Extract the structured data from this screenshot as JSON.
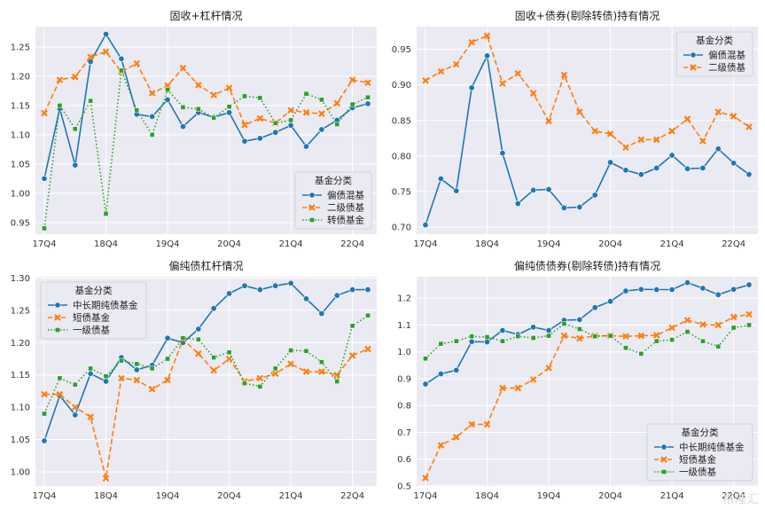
{
  "watermark": "格隆汇",
  "chart_data": [
    {
      "type": "line",
      "title": "固收+杠杆情况",
      "xlabel": "",
      "ylabel": "",
      "x": [
        "17Q4",
        "18Q1",
        "18Q2",
        "18Q3",
        "18Q4",
        "19Q1",
        "19Q2",
        "19Q3",
        "19Q4",
        "20Q1",
        "20Q2",
        "20Q3",
        "20Q4",
        "21Q1",
        "21Q2",
        "21Q3",
        "21Q4",
        "22Q1",
        "22Q2",
        "22Q3",
        "22Q4",
        "23Q1"
      ],
      "xticks": [
        "17Q4",
        "18Q4",
        "19Q4",
        "20Q4",
        "21Q4",
        "22Q4"
      ],
      "ylim": [
        0.93,
        1.285
      ],
      "yticks": [
        0.95,
        1.0,
        1.05,
        1.1,
        1.15,
        1.2,
        1.25
      ],
      "ytick_decimals": 2,
      "grid": true,
      "legend": {
        "title": "基金分类",
        "placement": "lower-right"
      },
      "series": [
        {
          "name": "偏债混基",
          "color": "#1f77b4",
          "style": "solid",
          "marker": "circle",
          "values": [
            1.025,
            1.145,
            1.048,
            1.225,
            1.272,
            1.23,
            1.135,
            1.131,
            1.16,
            1.114,
            1.138,
            1.13,
            1.138,
            1.089,
            1.094,
            1.104,
            1.116,
            1.08,
            1.109,
            1.125,
            1.146,
            1.153
          ]
        },
        {
          "name": "二级债基",
          "color": "#ff7f0e",
          "style": "dashed",
          "marker": "x",
          "values": [
            1.137,
            1.194,
            1.199,
            1.233,
            1.242,
            1.208,
            1.222,
            1.171,
            1.184,
            1.214,
            1.185,
            1.168,
            1.18,
            1.117,
            1.128,
            1.12,
            1.142,
            1.138,
            1.136,
            1.154,
            1.194,
            1.189
          ]
        },
        {
          "name": "转债基金",
          "color": "#2ca02c",
          "style": "dotted",
          "marker": "square",
          "values": [
            0.94,
            1.15,
            1.11,
            1.158,
            0.965,
            1.21,
            1.142,
            1.1,
            1.177,
            1.147,
            1.144,
            1.129,
            1.148,
            1.166,
            1.163,
            1.12,
            1.125,
            1.17,
            1.16,
            1.118,
            1.152,
            1.164
          ]
        }
      ]
    },
    {
      "type": "line",
      "title": "固收+债券(剔除转债)持有情况",
      "xlabel": "",
      "ylabel": "",
      "x": [
        "17Q4",
        "18Q1",
        "18Q2",
        "18Q3",
        "18Q4",
        "19Q1",
        "19Q2",
        "19Q3",
        "19Q4",
        "20Q1",
        "20Q2",
        "20Q3",
        "20Q4",
        "21Q1",
        "21Q2",
        "21Q3",
        "21Q4",
        "22Q1",
        "22Q2",
        "22Q3",
        "22Q4",
        "23Q1"
      ],
      "xticks": [
        "17Q4",
        "18Q4",
        "19Q4",
        "20Q4",
        "21Q4",
        "22Q4"
      ],
      "ylim": [
        0.69,
        0.982
      ],
      "yticks": [
        0.7,
        0.75,
        0.8,
        0.85,
        0.9,
        0.95
      ],
      "ytick_decimals": 2,
      "grid": true,
      "legend": {
        "title": "基金分类",
        "placement": "upper-right"
      },
      "series": [
        {
          "name": "偏债混基",
          "color": "#1f77b4",
          "style": "solid",
          "marker": "circle",
          "values": [
            0.703,
            0.768,
            0.751,
            0.896,
            0.941,
            0.804,
            0.733,
            0.752,
            0.753,
            0.727,
            0.728,
            0.745,
            0.791,
            0.78,
            0.774,
            0.783,
            0.801,
            0.782,
            0.783,
            0.81,
            0.79,
            0.774
          ]
        },
        {
          "name": "二级债基",
          "color": "#ff7f0e",
          "style": "dashed",
          "marker": "x",
          "values": [
            0.906,
            0.919,
            0.929,
            0.96,
            0.969,
            0.902,
            0.916,
            0.888,
            0.849,
            0.914,
            0.862,
            0.835,
            0.831,
            0.812,
            0.823,
            0.823,
            0.835,
            0.852,
            0.821,
            0.862,
            0.856,
            0.841
          ]
        }
      ]
    },
    {
      "type": "line",
      "title": "偏纯债杠杆情况",
      "xlabel": "",
      "ylabel": "",
      "x": [
        "17Q4",
        "18Q1",
        "18Q2",
        "18Q3",
        "18Q4",
        "19Q1",
        "19Q2",
        "19Q3",
        "19Q4",
        "20Q1",
        "20Q2",
        "20Q3",
        "20Q4",
        "21Q1",
        "21Q2",
        "21Q3",
        "21Q4",
        "22Q1",
        "22Q2",
        "22Q3",
        "22Q4",
        "23Q1"
      ],
      "xticks": [
        "17Q4",
        "18Q4",
        "19Q4",
        "20Q4",
        "21Q4",
        "22Q4"
      ],
      "ylim": [
        0.978,
        1.302
      ],
      "yticks": [
        1.0,
        1.05,
        1.1,
        1.15,
        1.2,
        1.25,
        1.3
      ],
      "ytick_decimals": 2,
      "grid": true,
      "legend": {
        "title": "基金分类",
        "placement": "upper-left"
      },
      "series": [
        {
          "name": "中长期纯债基金",
          "color": "#1f77b4",
          "style": "solid",
          "marker": "circle",
          "values": [
            1.048,
            1.118,
            1.088,
            1.152,
            1.14,
            1.177,
            1.158,
            1.165,
            1.207,
            1.2,
            1.221,
            1.253,
            1.276,
            1.288,
            1.282,
            1.288,
            1.292,
            1.268,
            1.245,
            1.273,
            1.282,
            1.282
          ]
        },
        {
          "name": "短债基金",
          "color": "#ff7f0e",
          "style": "dashed",
          "marker": "x",
          "values": [
            1.12,
            1.12,
            1.1,
            1.085,
            0.99,
            1.145,
            1.142,
            1.128,
            1.142,
            1.205,
            1.183,
            1.157,
            1.175,
            1.14,
            1.145,
            1.152,
            1.167,
            1.155,
            1.155,
            1.15,
            1.18,
            1.19
          ]
        },
        {
          "name": "一级债基",
          "color": "#2ca02c",
          "style": "dotted",
          "marker": "square",
          "values": [
            1.09,
            1.145,
            1.135,
            1.16,
            1.148,
            1.172,
            1.167,
            1.16,
            1.175,
            1.207,
            1.205,
            1.177,
            1.185,
            1.137,
            1.132,
            1.16,
            1.188,
            1.187,
            1.17,
            1.14,
            1.226,
            1.242
          ]
        }
      ]
    },
    {
      "type": "line",
      "title": "偏纯债债券(剔除转债)持有情况",
      "xlabel": "",
      "ylabel": "",
      "x": [
        "17Q4",
        "18Q1",
        "18Q2",
        "18Q3",
        "18Q4",
        "19Q1",
        "19Q2",
        "19Q3",
        "19Q4",
        "20Q1",
        "20Q2",
        "20Q3",
        "20Q4",
        "21Q1",
        "21Q2",
        "21Q3",
        "21Q4",
        "22Q1",
        "22Q2",
        "22Q3",
        "22Q4",
        "23Q1"
      ],
      "xticks": [
        "17Q4",
        "18Q4",
        "19Q4",
        "20Q4",
        "21Q4",
        "22Q4"
      ],
      "ylim": [
        0.5,
        1.28
      ],
      "yticks": [
        0.5,
        0.6,
        0.7,
        0.8,
        0.9,
        1.0,
        1.1,
        1.2
      ],
      "ytick_decimals": 1,
      "grid": true,
      "legend": {
        "title": "基金分类",
        "placement": "lower-right"
      },
      "series": [
        {
          "name": "中长期纯债基金",
          "color": "#1f77b4",
          "style": "solid",
          "marker": "circle",
          "values": [
            0.88,
            0.918,
            0.932,
            1.038,
            1.037,
            1.08,
            1.065,
            1.092,
            1.08,
            1.118,
            1.12,
            1.165,
            1.188,
            1.227,
            1.233,
            1.232,
            1.232,
            1.258,
            1.237,
            1.213,
            1.233,
            1.25
          ]
        },
        {
          "name": "短债基金",
          "color": "#ff7f0e",
          "style": "dashed",
          "marker": "x",
          "values": [
            0.53,
            0.652,
            0.682,
            0.73,
            0.73,
            0.865,
            0.865,
            0.897,
            0.94,
            1.06,
            1.05,
            1.06,
            1.06,
            1.058,
            1.06,
            1.062,
            1.09,
            1.118,
            1.102,
            1.1,
            1.13,
            1.14
          ]
        },
        {
          "name": "一级债基",
          "color": "#2ca02c",
          "style": "dotted",
          "marker": "square",
          "values": [
            0.975,
            1.03,
            1.04,
            1.058,
            1.055,
            1.04,
            1.058,
            1.052,
            1.06,
            1.105,
            1.085,
            1.058,
            1.06,
            1.015,
            0.993,
            1.04,
            1.045,
            1.075,
            1.04,
            1.02,
            1.09,
            1.1
          ]
        }
      ]
    }
  ]
}
